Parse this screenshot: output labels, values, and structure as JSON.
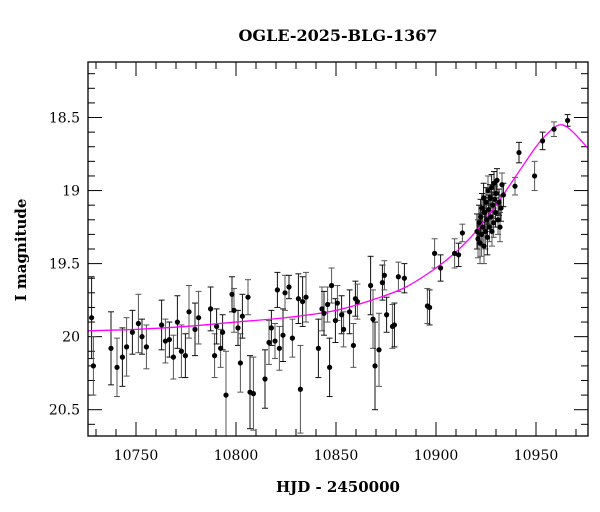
{
  "chart_data": {
    "type": "scatter",
    "title": "OGLE-2025-BLG-1367",
    "xlabel": "HJD - 2450000",
    "ylabel": "I magnitude",
    "xlim": [
      10726,
      10976
    ],
    "ylim": [
      20.68,
      18.12
    ],
    "y_inverted": true,
    "x_ticks": [
      10750,
      10800,
      10850,
      10900,
      10950
    ],
    "x_tick_labels": [
      "10750",
      "10800",
      "10850",
      "10900",
      "10950"
    ],
    "y_ticks": [
      18.5,
      19,
      19.5,
      20,
      20.5
    ],
    "y_tick_labels": [
      "18.5",
      "19",
      "19.5",
      "20",
      "20.5"
    ],
    "grid": false,
    "colors": {
      "points": "#000000",
      "errorbars": "#555555",
      "model": "#ff00ff"
    },
    "points": [
      [
        10727.8,
        19.87,
        0.28
      ],
      [
        10728.7,
        20.2,
        0.2
      ],
      [
        10737.5,
        20.08,
        0.25
      ],
      [
        10740.5,
        20.21,
        0.2
      ],
      [
        10743.2,
        20.14,
        0.2
      ],
      [
        10745.3,
        20.07,
        0.2
      ],
      [
        10748.2,
        19.97,
        0.15
      ],
      [
        10751.2,
        19.91,
        0.2
      ],
      [
        10753.0,
        20.0,
        0.12
      ],
      [
        10755.2,
        20.07,
        0.15
      ],
      [
        10762.8,
        19.92,
        0.17
      ],
      [
        10764.7,
        20.03,
        0.15
      ],
      [
        10766.7,
        20.02,
        0.12
      ],
      [
        10768.7,
        20.14,
        0.15
      ],
      [
        10770.7,
        19.9,
        0.18
      ],
      [
        10772.7,
        20.1,
        0.18
      ],
      [
        10774.7,
        20.13,
        0.15
      ],
      [
        10776.5,
        19.83,
        0.18
      ],
      [
        10779.5,
        19.95,
        0.18
      ],
      [
        10781.3,
        19.87,
        0.18
      ],
      [
        10787.3,
        19.81,
        0.15
      ],
      [
        10789.3,
        20.13,
        0.15
      ],
      [
        10790.3,
        19.93,
        0.12
      ],
      [
        10792.3,
        20.08,
        0.13
      ],
      [
        10793.3,
        19.97,
        0.12
      ],
      [
        10795.0,
        20.4,
        0.3
      ],
      [
        10798.0,
        19.71,
        0.12
      ],
      [
        10799.0,
        19.82,
        0.15
      ],
      [
        10801.0,
        19.94,
        0.12
      ],
      [
        10802.2,
        20.18,
        0.2
      ],
      [
        10803.2,
        19.86,
        0.15
      ],
      [
        10806.0,
        19.73,
        0.12
      ],
      [
        10807.0,
        20.38,
        0.25
      ],
      [
        10808.7,
        20.39,
        0.25
      ],
      [
        10814.5,
        20.29,
        0.2
      ],
      [
        10816.5,
        20.04,
        0.15
      ],
      [
        10817.7,
        19.94,
        0.12
      ],
      [
        10819.5,
        20.03,
        0.12
      ],
      [
        10820.7,
        19.68,
        0.12
      ],
      [
        10821.7,
        20.08,
        0.15
      ],
      [
        10823.5,
        19.99,
        0.18
      ],
      [
        10824.5,
        19.7,
        0.12
      ],
      [
        10826.5,
        19.66,
        0.08
      ],
      [
        10828.2,
        20.01,
        0.13
      ],
      [
        10831.2,
        19.74,
        0.17
      ],
      [
        10832.2,
        20.36,
        0.3
      ],
      [
        10833.3,
        19.76,
        0.17
      ],
      [
        10835.0,
        19.73,
        0.17
      ],
      [
        10841.2,
        20.08,
        0.2
      ],
      [
        10843.0,
        19.81,
        0.15
      ],
      [
        10844.0,
        19.84,
        0.15
      ],
      [
        10845.8,
        19.78,
        0.12
      ],
      [
        10846.8,
        20.21,
        0.2
      ],
      [
        10847.8,
        19.65,
        0.12
      ],
      [
        10849.7,
        19.89,
        0.15
      ],
      [
        10850.7,
        19.77,
        0.12
      ],
      [
        10852.8,
        19.85,
        0.13
      ],
      [
        10853.8,
        19.95,
        0.12
      ],
      [
        10856.8,
        19.83,
        0.15
      ],
      [
        10858.7,
        20.06,
        0.15
      ],
      [
        10859.7,
        19.74,
        0.12
      ],
      [
        10860.7,
        19.76,
        0.12
      ],
      [
        10867.3,
        19.65,
        0.2
      ],
      [
        10868.5,
        19.88,
        0.2
      ],
      [
        10869.5,
        20.2,
        0.3
      ],
      [
        10871.5,
        20.09,
        0.25
      ],
      [
        10873.2,
        19.63,
        0.12
      ],
      [
        10874.2,
        19.58,
        0.1
      ],
      [
        10875.3,
        19.85,
        0.12
      ],
      [
        10878.2,
        19.93,
        0.15
      ],
      [
        10879.2,
        19.92,
        0.15
      ],
      [
        10881.2,
        19.59,
        0.1
      ],
      [
        10884.2,
        19.6,
        0.1
      ],
      [
        10895.7,
        19.79,
        0.12
      ],
      [
        10896.8,
        19.8,
        0.12
      ],
      [
        10899.3,
        19.43,
        0.1
      ],
      [
        10902.3,
        19.53,
        0.09
      ],
      [
        10909.3,
        19.43,
        0.1
      ],
      [
        10911.3,
        19.44,
        0.08
      ],
      [
        10913.2,
        19.29,
        0.06
      ],
      [
        10920.5,
        19.28,
        0.12
      ],
      [
        10921.0,
        19.33,
        0.13
      ],
      [
        10921.5,
        19.22,
        0.12
      ],
      [
        10922.0,
        19.36,
        0.14
      ],
      [
        10922.3,
        19.18,
        0.12
      ],
      [
        10922.8,
        19.3,
        0.15
      ],
      [
        10923.0,
        19.12,
        0.1
      ],
      [
        10923.4,
        19.25,
        0.13
      ],
      [
        10923.8,
        19.05,
        0.1
      ],
      [
        10924.0,
        19.38,
        0.12
      ],
      [
        10924.3,
        19.15,
        0.1
      ],
      [
        10924.7,
        19.28,
        0.12
      ],
      [
        10925.0,
        19.08,
        0.1
      ],
      [
        10925.3,
        19.2,
        0.11
      ],
      [
        10925.7,
        19.32,
        0.12
      ],
      [
        10926.0,
        19.0,
        0.1
      ],
      [
        10926.3,
        19.13,
        0.1
      ],
      [
        10926.7,
        19.25,
        0.1
      ],
      [
        10927.0,
        19.05,
        0.09
      ],
      [
        10927.4,
        19.18,
        0.1
      ],
      [
        10927.8,
        18.98,
        0.09
      ],
      [
        10928.0,
        19.28,
        0.1
      ],
      [
        10928.4,
        19.1,
        0.09
      ],
      [
        10928.8,
        19.22,
        0.1
      ],
      [
        10929.0,
        18.95,
        0.08
      ],
      [
        10929.4,
        19.06,
        0.09
      ],
      [
        10929.8,
        19.15,
        0.1
      ],
      [
        10930.0,
        19.02,
        0.08
      ],
      [
        10930.5,
        18.93,
        0.08
      ],
      [
        10931.0,
        19.2,
        0.1
      ],
      [
        10931.5,
        19.08,
        0.09
      ],
      [
        10932.0,
        19.25,
        0.1
      ],
      [
        10932.5,
        19.12,
        0.09
      ],
      [
        10933.0,
        18.96,
        0.08
      ],
      [
        10933.7,
        19.03,
        0.08
      ],
      [
        10939.5,
        18.97,
        0.06
      ],
      [
        10941.5,
        18.74,
        0.07
      ],
      [
        10949.3,
        18.9,
        0.1
      ],
      [
        10953.3,
        18.66,
        0.06
      ],
      [
        10959.0,
        18.58,
        0.05
      ],
      [
        10965.8,
        18.52,
        0.04
      ]
    ],
    "model": [
      [
        10726,
        19.96
      ],
      [
        10750,
        19.95
      ],
      [
        10775,
        19.93
      ],
      [
        10800,
        19.9
      ],
      [
        10825,
        19.87
      ],
      [
        10850,
        19.82
      ],
      [
        10870,
        19.74
      ],
      [
        10885,
        19.66
      ],
      [
        10900,
        19.53
      ],
      [
        10910,
        19.42
      ],
      [
        10920,
        19.28
      ],
      [
        10930,
        19.1
      ],
      [
        10940,
        18.9
      ],
      [
        10950,
        18.7
      ],
      [
        10955,
        18.62
      ],
      [
        10960,
        18.56
      ],
      [
        10963,
        18.55
      ],
      [
        10966,
        18.57
      ],
      [
        10970,
        18.62
      ],
      [
        10976,
        18.71
      ]
    ]
  }
}
